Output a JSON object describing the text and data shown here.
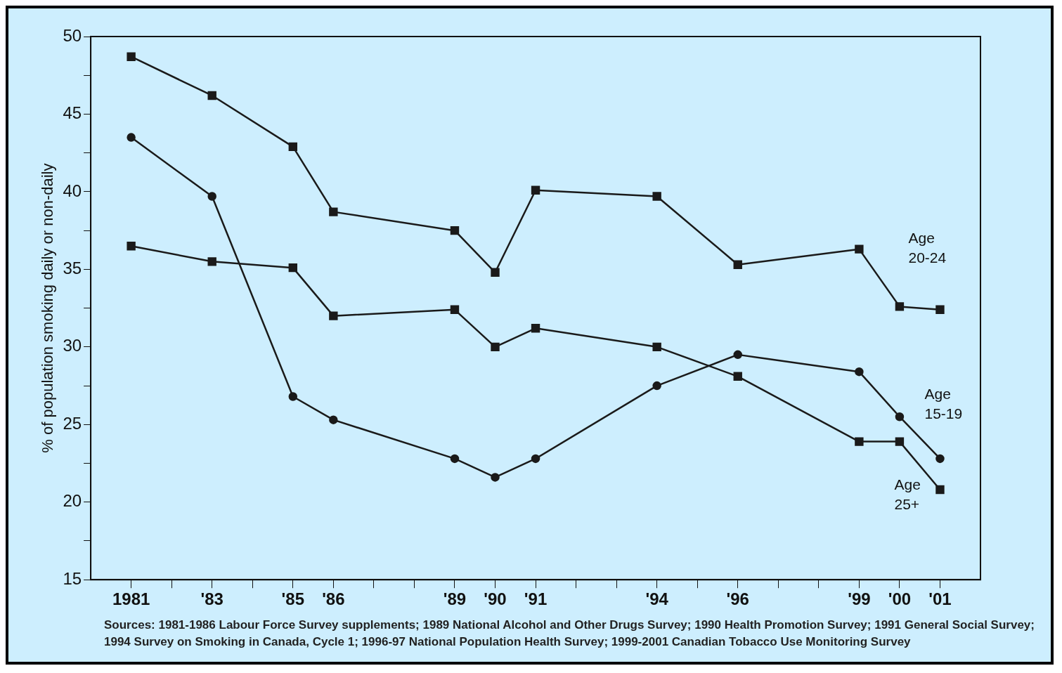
{
  "chart_data": {
    "type": "line",
    "ylabel": "% of population smoking daily or non-daily",
    "x": [
      1981,
      1983,
      1985,
      1986,
      1989,
      1990,
      1991,
      1994,
      1996,
      1999,
      2000,
      2001
    ],
    "series": [
      {
        "name": "Age 20-24",
        "color": "#1a1a1a",
        "marker": "square",
        "values": [
          48.7,
          46.2,
          42.9,
          38.7,
          37.5,
          34.8,
          40.1,
          39.7,
          35.3,
          36.3,
          32.6,
          32.4
        ]
      },
      {
        "name": "Age 15-19",
        "color": "#1a1a1a",
        "marker": "circle",
        "values": [
          43.5,
          39.7,
          26.8,
          25.3,
          22.8,
          21.6,
          22.8,
          27.5,
          29.5,
          28.4,
          25.5,
          22.8
        ]
      },
      {
        "name": "Age 25+",
        "color": "#1a1a1a",
        "marker": "square",
        "values": [
          36.5,
          35.5,
          35.1,
          32.0,
          32.4,
          30.0,
          31.2,
          30.0,
          28.1,
          23.9,
          23.9,
          20.8
        ]
      }
    ],
    "xlim": [
      1980,
      2002
    ],
    "xticks": [
      {
        "value": 1981,
        "label": "1981"
      },
      {
        "value": 1982,
        "label": null
      },
      {
        "value": 1983,
        "label": "'83"
      },
      {
        "value": 1984,
        "label": null
      },
      {
        "value": 1985,
        "label": "'85"
      },
      {
        "value": 1986,
        "label": "'86"
      },
      {
        "value": 1987,
        "label": null
      },
      {
        "value": 1988,
        "label": null
      },
      {
        "value": 1989,
        "label": "'89"
      },
      {
        "value": 1990,
        "label": "'90"
      },
      {
        "value": 1991,
        "label": "'91"
      },
      {
        "value": 1992,
        "label": null
      },
      {
        "value": 1993,
        "label": null
      },
      {
        "value": 1994,
        "label": "'94"
      },
      {
        "value": 1995,
        "label": null
      },
      {
        "value": 1996,
        "label": "'96"
      },
      {
        "value": 1997,
        "label": null
      },
      {
        "value": 1998,
        "label": null
      },
      {
        "value": 1999,
        "label": "'99"
      },
      {
        "value": 2000,
        "label": "'00"
      },
      {
        "value": 2001,
        "label": "'01"
      }
    ],
    "ylim": [
      15,
      50
    ],
    "yticks": [
      15,
      {
        "value": 17.5,
        "label": null
      },
      20,
      {
        "value": 22.5,
        "label": null
      },
      25,
      {
        "value": 27.5,
        "label": null
      },
      30,
      {
        "value": 32.5,
        "label": null
      },
      35,
      {
        "value": 37.5,
        "label": null
      },
      40,
      {
        "value": 42.5,
        "label": null
      },
      45,
      {
        "value": 47.5,
        "label": null
      },
      50
    ],
    "legend": false,
    "line_style": "solid",
    "annotations": [
      "Sources:  1981-1986 Labour Force Survey supplements; 1989 National Alcohol and Other Drugs Survey; 1990 Health Promotion Survey; 1991 General Social Survey; 1994 Survey on Smoking in Canada, Cycle 1; 1996-97 National Population Health Survey; 1999-2001 Canadian Tobacco Use Monitoring Survey"
    ]
  }
}
